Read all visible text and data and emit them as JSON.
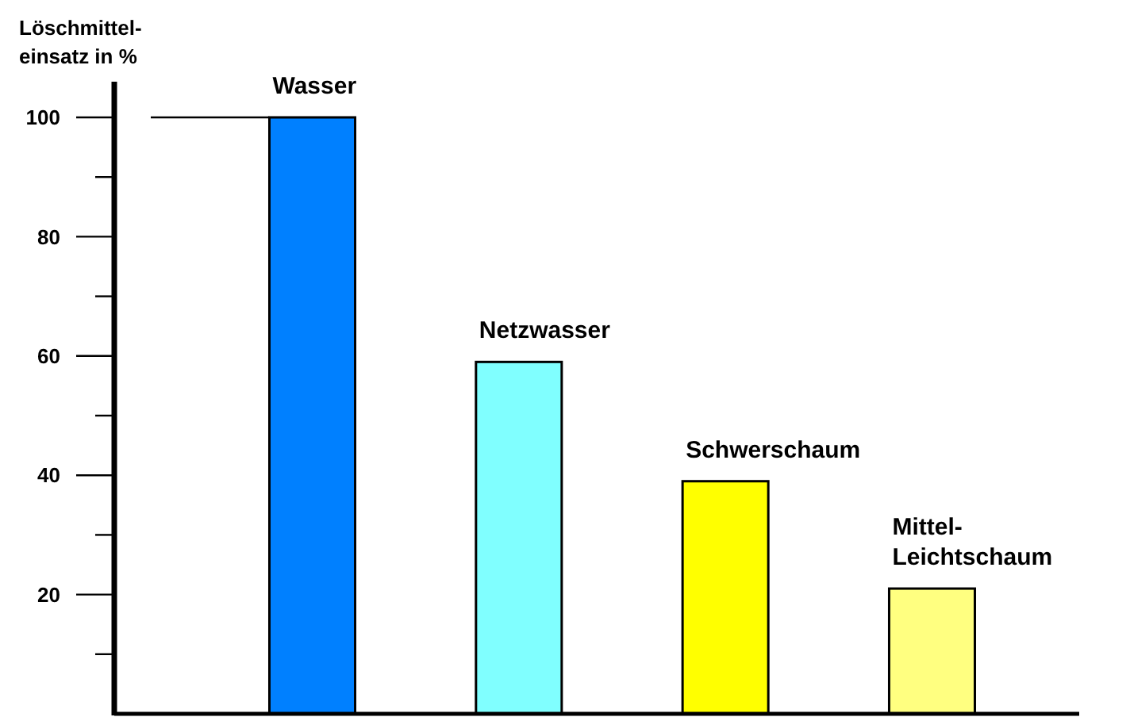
{
  "chart_data": {
    "type": "bar",
    "ylabel": "Löschmittel-\neinsatz in %",
    "categories": [
      "Wasser",
      "Netzwasser",
      "Schwerschaum",
      "Mittel-\nLeichtschaum"
    ],
    "values": [
      100,
      59,
      39,
      21
    ],
    "colors": [
      "#0080ff",
      "#80ffff",
      "#ffff00",
      "#ffff80"
    ],
    "ylim": [
      0,
      106
    ],
    "yticks": [
      {
        "value": 10,
        "label": null
      },
      20,
      {
        "value": 30,
        "label": null
      },
      40,
      {
        "value": 50,
        "label": null
      },
      60,
      {
        "value": 70,
        "label": null
      },
      80,
      {
        "value": 90,
        "label": null
      },
      100
    ],
    "ref_lines": [
      {
        "axis": "y",
        "value": 100
      }
    ],
    "grid": false
  }
}
